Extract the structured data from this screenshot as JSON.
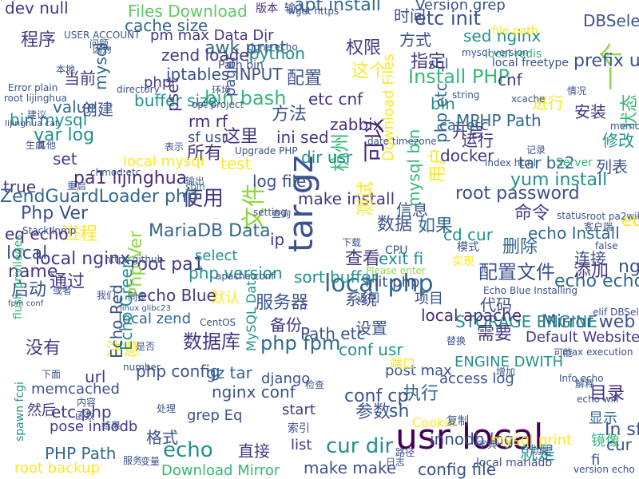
{
  "words": [
    {
      "text": "usr local",
      "color": "#440154"
    },
    {
      "text": "tar gz",
      "color": "#3b528b"
    },
    {
      "text": "bin bash",
      "color": "#35b779"
    },
    {
      "text": "local php",
      "color": "#31688e"
    },
    {
      "text": "使用",
      "color": "#443983"
    },
    {
      "text": "文件",
      "color": "#90d743"
    },
    {
      "text": "echo",
      "color": "#21918c"
    },
    {
      "text": "php fpm",
      "color": "#31688e"
    },
    {
      "text": "cur dir",
      "color": "#21918c"
    },
    {
      "text": "服务器",
      "color": "#3b528b"
    },
    {
      "text": "目录",
      "color": "#472d7b"
    },
    {
      "text": "一个",
      "color": "#90d743"
    },
    {
      "text": "数据库",
      "color": "#443983"
    },
    {
      "text": "local nginx",
      "color": "#443983"
    },
    {
      "text": "MariaDB Data",
      "color": "#31688e"
    },
    {
      "text": "Php Ver",
      "color": "#3b528b"
    },
    {
      "text": "ZendGuardLoader php",
      "color": "#31688e"
    },
    {
      "text": "pa1 lijinghua",
      "color": "#472d7b"
    },
    {
      "text": "数据",
      "color": "#3b528b"
    },
    {
      "text": "如果",
      "color": "#31688e"
    },
    {
      "text": "命令",
      "color": "#443983"
    },
    {
      "text": "可以",
      "color": "#472d7b"
    },
    {
      "text": "杭州",
      "color": "#35b779"
    },
    {
      "text": "apt install",
      "color": "#31688e"
    },
    {
      "text": "etc init",
      "color": "#3b528b"
    },
    {
      "text": "Files Download",
      "color": "#5ec962"
    },
    {
      "text": "dev null",
      "color": "#443983"
    },
    {
      "text": "pm max Data Dir",
      "color": "#443983"
    },
    {
      "text": "awk print",
      "color": "#31688e"
    },
    {
      "text": "zend loader",
      "color": "#443983"
    },
    {
      "text": "iptables INPUT",
      "color": "#3b528b"
    },
    {
      "text": "python",
      "color": "#21918c"
    },
    {
      "text": "Install PHP",
      "color": "#35b779"
    },
    {
      "text": "make install",
      "color": "#443983"
    },
    {
      "text": "root password",
      "color": "#3b528b"
    },
    {
      "text": "echo Install",
      "color": "#31688e"
    },
    {
      "text": "配置文件",
      "color": "#3b528b"
    },
    {
      "text": "root pa1",
      "color": "#443983"
    },
    {
      "text": "php version",
      "color": "#21918c"
    },
    {
      "text": "echo echo",
      "color": "#31688e"
    },
    {
      "text": "Mirror web",
      "color": "#3b528b"
    },
    {
      "text": "STORAGE ENGINE",
      "color": "#21918c"
    },
    {
      "text": "php config",
      "color": "#3b528b"
    },
    {
      "text": "nginx conf",
      "color": "#3b528b"
    },
    {
      "text": "make make",
      "color": "#3b528b"
    },
    {
      "text": "config file",
      "color": "#3b528b"
    },
    {
      "text": "gz tar",
      "color": "#31688e"
    },
    {
      "text": "grep Eq",
      "color": "#3b528b"
    },
    {
      "text": "local apache",
      "color": "#472d7b"
    },
    {
      "text": "Path etc",
      "color": "#3b528b"
    },
    {
      "text": "设置",
      "color": "#3b528b"
    },
    {
      "text": "sort buffer",
      "color": "#21918c"
    },
    {
      "text": "查看",
      "color": "#443983"
    },
    {
      "text": "local zend",
      "color": "#31688e"
    },
    {
      "text": "默认",
      "color": "#fde725"
    },
    {
      "text": "memcached",
      "color": "#3b528b"
    },
    {
      "text": "django",
      "color": "#3b528b"
    },
    {
      "text": "root backup",
      "color": "#fde725"
    },
    {
      "text": "PHP Path",
      "color": "#31688e"
    },
    {
      "text": "Download Mirror",
      "color": "#35b779"
    },
    {
      "text": "list",
      "color": "#443983"
    },
    {
      "text": "执行",
      "color": "#31688e"
    },
    {
      "text": "参数",
      "color": "#3b528b"
    },
    {
      "text": "需要",
      "color": "#443983"
    },
    {
      "text": "显示",
      "color": "#31688e"
    },
    {
      "text": "就是",
      "color": "#21918c"
    },
    {
      "text": "镜像",
      "color": "#35b779"
    },
    {
      "text": "pose innodb",
      "color": "#443983"
    },
    {
      "text": "etc php",
      "color": "#443983"
    },
    {
      "text": "然后",
      "color": "#443983"
    },
    {
      "text": "没有",
      "color": "#443983"
    },
    {
      "text": "注意",
      "color": "#fde725"
    },
    {
      "text": "Echo Green",
      "color": "#21918c"
    },
    {
      "text": "Echo Red",
      "color": "#3b528b"
    },
    {
      "text": "启动",
      "color": "#3b528b"
    },
    {
      "text": "通过",
      "color": "#443983"
    },
    {
      "text": "name",
      "color": "#443983"
    },
    {
      "text": "local",
      "color": "#3b528b"
    },
    {
      "text": "进程",
      "color": "#fde725"
    },
    {
      "text": "eq echo",
      "color": "#472d7b"
    },
    {
      "text": "true",
      "color": "#443983"
    },
    {
      "text": "set",
      "color": "#443983"
    },
    {
      "text": "var log",
      "color": "#21918c"
    },
    {
      "text": "bin mysql",
      "color": "#21918c"
    },
    {
      "text": "value",
      "color": "#31688e"
    },
    {
      "text": "创建",
      "color": "#3b528b"
    },
    {
      "text": "当前",
      "color": "#443983"
    },
    {
      "text": "程序",
      "color": "#443983"
    },
    {
      "text": "cache size",
      "color": "#31688e"
    },
    {
      "text": "方法",
      "color": "#3b528b"
    },
    {
      "text": "这里",
      "color": "#443983"
    },
    {
      "text": "sf usr",
      "color": "#3b528b"
    },
    {
      "text": "rm rf",
      "color": "#472d7b"
    },
    {
      "text": "所有",
      "color": "#443983"
    },
    {
      "text": "log file",
      "color": "#3b528b"
    },
    {
      "text": "ini sed",
      "color": "#443983"
    },
    {
      "text": "dir usr",
      "color": "#21918c"
    },
    {
      "text": "select",
      "color": "#21918c"
    },
    {
      "text": "信息",
      "color": "#3b528b"
    },
    {
      "text": "cd cur",
      "color": "#21918c"
    },
    {
      "text": "删除",
      "color": "#31688e"
    },
    {
      "text": "连接",
      "color": "#3b528b"
    },
    {
      "text": "添加",
      "color": "#443983"
    },
    {
      "text": "exit fi",
      "color": "#21918c"
    },
    {
      "text": "init php",
      "color": "#3b528b"
    },
    {
      "text": "系统",
      "color": "#3b528b"
    },
    {
      "text": "代码",
      "color": "#3b528b"
    },
    {
      "text": "项目",
      "color": "#3b528b"
    },
    {
      "text": "备份",
      "color": "#443983"
    },
    {
      "text": "conf usr",
      "color": "#21918c"
    },
    {
      "text": "conf cp",
      "color": "#3b528b"
    },
    {
      "text": "start",
      "color": "#443983"
    },
    {
      "text": "直接",
      "color": "#443983"
    },
    {
      "text": "格式",
      "color": "#3b528b"
    },
    {
      "text": "url",
      "color": "#443983"
    },
    {
      "text": "sh",
      "color": "#3b528b"
    },
    {
      "text": "ip",
      "color": "#443983"
    },
    {
      "text": "yum install",
      "color": "#21918c"
    },
    {
      "text": "tar bz2",
      "color": "#31688e"
    },
    {
      "text": "列表",
      "color": "#3b528b"
    },
    {
      "text": "docker",
      "color": "#443983"
    },
    {
      "text": "开启",
      "color": "#443983"
    },
    {
      "text": "运行",
      "color": "#443983"
    },
    {
      "text": "修改",
      "color": "#21918c"
    },
    {
      "text": "cat etc",
      "color": "#31688e"
    },
    {
      "text": "MPHP Path",
      "color": "#31688e"
    },
    {
      "text": "安装",
      "color": "#443983"
    },
    {
      "text": "进行",
      "color": "#fde725"
    },
    {
      "text": "zabbix",
      "color": "#472d7b"
    },
    {
      "text": "etc cnf",
      "color": "#472d7b"
    },
    {
      "text": "配置",
      "color": "#3b528b"
    },
    {
      "text": "方式",
      "color": "#3b528b"
    },
    {
      "text": "时间",
      "color": "#3b528b"
    },
    {
      "text": "权限",
      "color": "#443983"
    },
    {
      "text": "这个",
      "color": "#fde725"
    },
    {
      "text": "指定",
      "color": "#443983"
    },
    {
      "text": "prefix usr",
      "color": "#3b528b"
    },
    {
      "text": "sed nginx",
      "color": "#21918c"
    },
    {
      "text": "cnf",
      "color": "#443983"
    },
    {
      "text": "sql",
      "color": "#3b528b"
    },
    {
      "text": "DBSelect DBSelectuwsgi",
      "color": "#3b528b"
    },
    {
      "text": "Version grep",
      "color": "#3b528b"
    },
    {
      "text": "mysql bin",
      "color": "#35b779"
    },
    {
      "text": "Download Files",
      "color": "#fde725"
    },
    {
      "text": "状态",
      "color": "#35b779"
    },
    {
      "text": "buffer size",
      "color": "#21918c"
    },
    {
      "text": "php",
      "color": "#443983"
    },
    {
      "text": "mysql",
      "color": "#31688e"
    },
    {
      "text": "pset",
      "color": "#443983"
    },
    {
      "text": "pager",
      "color": "#3b528b"
    },
    {
      "text": "test",
      "color": "#fde725"
    },
    {
      "text": "local mysql",
      "color": "#fde725"
    },
    {
      "text": "echo Blue",
      "color": "#443983"
    },
    {
      "text": "Php Ver",
      "color": "#90d743"
    },
    {
      "text": "bin",
      "color": "#21918c"
    },
    {
      "text": "php etc",
      "color": "#31688e"
    },
    {
      "text": "测试",
      "color": "#fde725"
    },
    {
      "text": "用户",
      "color": "#fde725"
    },
    {
      "text": "ENGINE DWITH",
      "color": "#21918c"
    },
    {
      "text": "post max",
      "color": "#3b528b"
    },
    {
      "text": "Default Website",
      "color": "#443983"
    },
    {
      "text": "access log",
      "color": "#3b528b"
    },
    {
      "text": "innodb log",
      "color": "#3b528b"
    },
    {
      "text": "mysql print",
      "color": "#fde725"
    },
    {
      "text": "cur",
      "color": "#3b528b"
    },
    {
      "text": "In sf",
      "color": "#3b528b"
    },
    {
      "text": "fi",
      "color": "#3b528b"
    },
    {
      "text": "ng",
      "color": "#3b528b"
    },
    {
      "text": "ed",
      "color": "#fde725"
    },
    {
      "text": "MySQL Data",
      "color": "#21918c"
    },
    {
      "text": "sbin",
      "color": "#21918c"
    },
    {
      "text": "flush privileges",
      "color": "#35b779"
    },
    {
      "text": "spawn fcgi",
      "color": "#21918c"
    },
    {
      "text": "Server",
      "color": "#35b779"
    },
    {
      "text": "版本",
      "color": "#472d7b"
    },
    {
      "text": "输入",
      "color": "#3b528b"
    },
    {
      "text": "file path",
      "color": "#fde725"
    },
    {
      "text": "端口",
      "color": "#fde725"
    },
    {
      "text": "local redis",
      "color": "#35b779"
    },
    {
      "text": "Cookie",
      "color": "#fde725"
    },
    {
      "text": "local mariadb",
      "color": "#3b528b"
    },
    {
      "text": "mysql version",
      "color": "#3b528b"
    },
    {
      "text": "Path bin",
      "color": "#3b528b"
    },
    {
      "text": "local freetype",
      "color": "#3b528b"
    },
    {
      "text": "xcache",
      "color": "#3b528b"
    },
    {
      "text": "环境",
      "color": "#3b528b"
    },
    {
      "text": "下载",
      "color": "#3b528b"
    },
    {
      "text": "返回",
      "color": "#3b528b"
    },
    {
      "text": "字典",
      "color": "#3b528b"
    },
    {
      "text": "记录",
      "color": "#3b528b"
    },
    {
      "text": "查询",
      "color": "#3b528b"
    },
    {
      "text": "索引",
      "color": "#3b528b"
    },
    {
      "text": "检查",
      "color": "#3b528b"
    },
    {
      "text": "替换",
      "color": "#3b528b"
    },
    {
      "text": "日志",
      "color": "#3b528b"
    },
    {
      "text": "路径",
      "color": "#3b528b"
    },
    {
      "text": "复制",
      "color": "#3b528b"
    },
    {
      "text": "增加",
      "color": "#3b528b"
    },
    {
      "text": "情况",
      "color": "#3b528b"
    },
    {
      "text": "实现",
      "color": "#fde725"
    },
    {
      "text": "模式",
      "color": "#3b528b"
    },
    {
      "text": "CPU",
      "color": "#3b528b"
    },
    {
      "text": "Please enter",
      "color": "#90d743"
    },
    {
      "text": "Error plain",
      "color": "#3b528b"
    },
    {
      "text": "root lijinghua",
      "color": "#3b528b"
    },
    {
      "text": "lijinghua cat",
      "color": "#3b528b"
    },
    {
      "text": "chmod etc",
      "color": "#3b528b"
    },
    {
      "text": "index html",
      "color": "#3b528b"
    },
    {
      "text": "https github",
      "color": "#3b528b"
    },
    {
      "text": "CentOS",
      "color": "#3b528b"
    },
    {
      "text": "linux glibc23",
      "color": "#3b528b"
    },
    {
      "text": "fpm conf",
      "color": "#3b528b"
    },
    {
      "text": "Stack lnmp",
      "color": "#3b528b"
    },
    {
      "text": "USER ACCOUNT",
      "color": "#3b528b"
    },
    {
      "text": "Upgrade PHP",
      "color": "#3b528b"
    },
    {
      "text": "opt project",
      "color": "#3b528b"
    },
    {
      "text": "date timezone",
      "color": "#3b528b"
    },
    {
      "text": "apache conf",
      "color": "#3b528b"
    },
    {
      "text": "wget https",
      "color": "#3b528b"
    },
    {
      "text": "done echo",
      "color": "#3b528b"
    },
    {
      "text": "Echo Blue Installing",
      "color": "#3b528b"
    },
    {
      "text": "status",
      "color": "#3b528b"
    },
    {
      "text": "root pa2will",
      "color": "#3b528b"
    },
    {
      "text": "false",
      "color": "#3b528b"
    },
    {
      "text": "客户端",
      "color": "#3b528b"
    },
    {
      "text": "可能",
      "color": "#3b528b"
    },
    {
      "text": "解释",
      "color": "#3b528b"
    },
    {
      "text": "elif DBSelect",
      "color": "#3b528b"
    },
    {
      "text": "max execution",
      "color": "#3b528b"
    },
    {
      "text": "echo will",
      "color": "#3b528b"
    },
    {
      "text": "Info echo",
      "color": "#3b528b"
    },
    {
      "text": "version echo",
      "color": "#3b528b"
    },
    {
      "text": "功能",
      "color": "#3b528b"
    },
    {
      "text": "变量",
      "color": "#3b528b"
    },
    {
      "text": "服务",
      "color": "#3b528b"
    },
    {
      "text": "结果",
      "color": "#3b528b"
    },
    {
      "text": "处理",
      "color": "#3b528b"
    },
    {
      "text": "内容",
      "color": "#3b528b"
    },
    {
      "text": "函数",
      "color": "#3b528b"
    },
    {
      "text": "下面",
      "color": "#3b528b"
    },
    {
      "text": "或者",
      "color": "#3b528b"
    },
    {
      "text": "我们",
      "color": "#3b528b"
    },
    {
      "text": "同步",
      "color": "#3b528b"
    },
    {
      "text": "输出",
      "color": "#3b528b"
    },
    {
      "text": "重启",
      "color": "#3b528b"
    },
    {
      "text": "表示",
      "color": "#3b528b"
    },
    {
      "text": "其他",
      "color": "#3b528b"
    },
    {
      "text": "生成",
      "color": "#3b528b"
    },
    {
      "text": "建议",
      "color": "#3b528b"
    },
    {
      "text": "本地",
      "color": "#3b528b"
    },
    {
      "text": "问题",
      "color": "#3b528b"
    },
    {
      "text": "因为",
      "color": "#3b528b"
    },
    {
      "text": "是否",
      "color": "#3b528b"
    },
    {
      "text": "number",
      "color": "#3b528b"
    },
    {
      "text": "directory",
      "color": "#3b528b"
    },
    {
      "text": "string",
      "color": "#3b528b"
    },
    {
      "text": "setting",
      "color": "#3b528b"
    },
    {
      "text": "memory",
      "color": "#3b528b"
    },
    {
      "text": "pid",
      "color": "#3b528b"
    },
    {
      "text": "tmp",
      "color": "#3b528b"
    },
    {
      "text": "ok",
      "color": "#3b528b"
    },
    {
      "text": "END",
      "color": "#3b528b"
    }
  ]
}
